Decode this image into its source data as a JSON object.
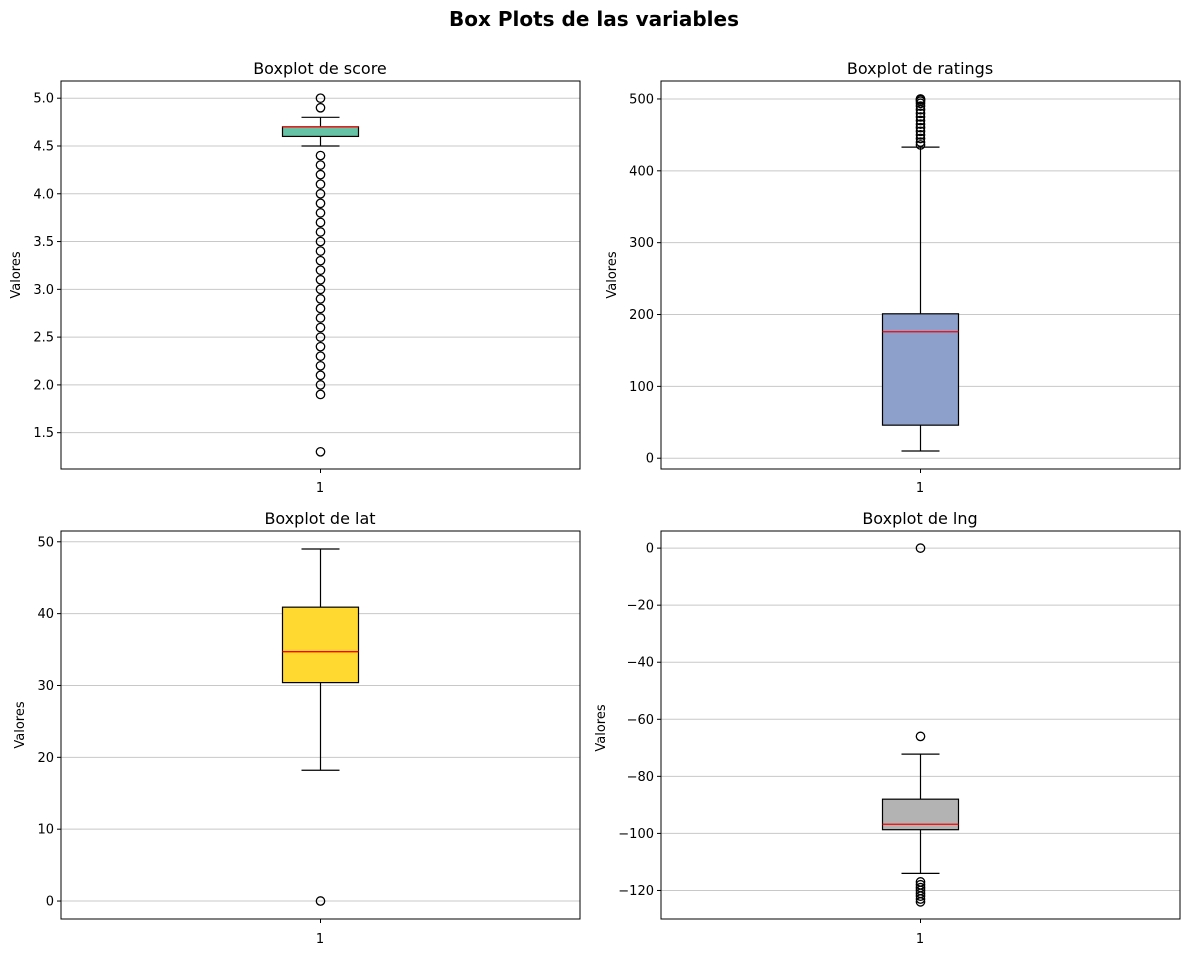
{
  "figure_title": "Box Plots de las variables",
  "chart_data": [
    {
      "type": "box",
      "title": "Boxplot de score",
      "ylabel": "Valores",
      "xlabel": "",
      "categories": [
        "1"
      ],
      "ylim": [
        1.12,
        5.18
      ],
      "yticks": [
        "1.5",
        "2.0",
        "2.5",
        "3.0",
        "3.5",
        "4.0",
        "4.5",
        "5.0"
      ],
      "grid": "y",
      "box_color": "#66c2a5",
      "median_color": "#ff0000",
      "q1": 4.6,
      "median": 4.7,
      "q3": 4.7,
      "whisker_low": 4.5,
      "whisker_high": 4.8,
      "outliers": [
        1.3,
        1.9,
        2.0,
        2.1,
        2.2,
        2.3,
        2.4,
        2.5,
        2.6,
        2.7,
        2.8,
        2.9,
        3.0,
        3.1,
        3.2,
        3.3,
        3.4,
        3.5,
        3.6,
        3.7,
        3.8,
        3.9,
        4.0,
        4.1,
        4.2,
        4.3,
        4.4,
        4.9,
        5.0
      ]
    },
    {
      "type": "box",
      "title": "Boxplot de ratings",
      "ylabel": "Valores",
      "xlabel": "",
      "categories": [
        "1"
      ],
      "ylim": [
        -15,
        525
      ],
      "yticks": [
        "0",
        "100",
        "200",
        "300",
        "400",
        "500"
      ],
      "grid": "y",
      "box_color": "#8da0cb",
      "median_color": "#ff0000",
      "q1": 46,
      "median": 176,
      "q3": 201,
      "whisker_low": 10,
      "whisker_high": 433,
      "outliers": [
        436,
        440,
        445,
        450,
        455,
        460,
        465,
        470,
        475,
        480,
        485,
        490,
        494,
        497,
        499,
        500
      ]
    },
    {
      "type": "box",
      "title": "Boxplot de lat",
      "ylabel": "Valores",
      "xlabel": "",
      "categories": [
        "1"
      ],
      "ylim": [
        -2.5,
        51.5
      ],
      "yticks": [
        "0",
        "10",
        "20",
        "30",
        "40",
        "50"
      ],
      "grid": "y",
      "box_color": "#ffd92f",
      "median_color": "#ff0000",
      "q1": 30.4,
      "median": 34.7,
      "q3": 40.9,
      "whisker_low": 18.2,
      "whisker_high": 49.0,
      "outliers": [
        0.0
      ]
    },
    {
      "type": "box",
      "title": "Boxplot de lng",
      "ylabel": "Valores",
      "xlabel": "",
      "categories": [
        "1"
      ],
      "ylim": [
        -130,
        6
      ],
      "yticks": [
        "0",
        "−20",
        "−40",
        "−60",
        "−80",
        "−100",
        "−120"
      ],
      "grid": "y",
      "box_color": "#b3b3b3",
      "median_color": "#ff0000",
      "q1": -98.7,
      "median": -96.8,
      "q3": -88.0,
      "whisker_low": -114.0,
      "whisker_high": -72.2,
      "outliers": [
        0.0,
        -66.0,
        -117.0,
        -118.0,
        -119.0,
        -120.0,
        -121.0,
        -122.0,
        -123.0,
        -124.0
      ]
    }
  ]
}
